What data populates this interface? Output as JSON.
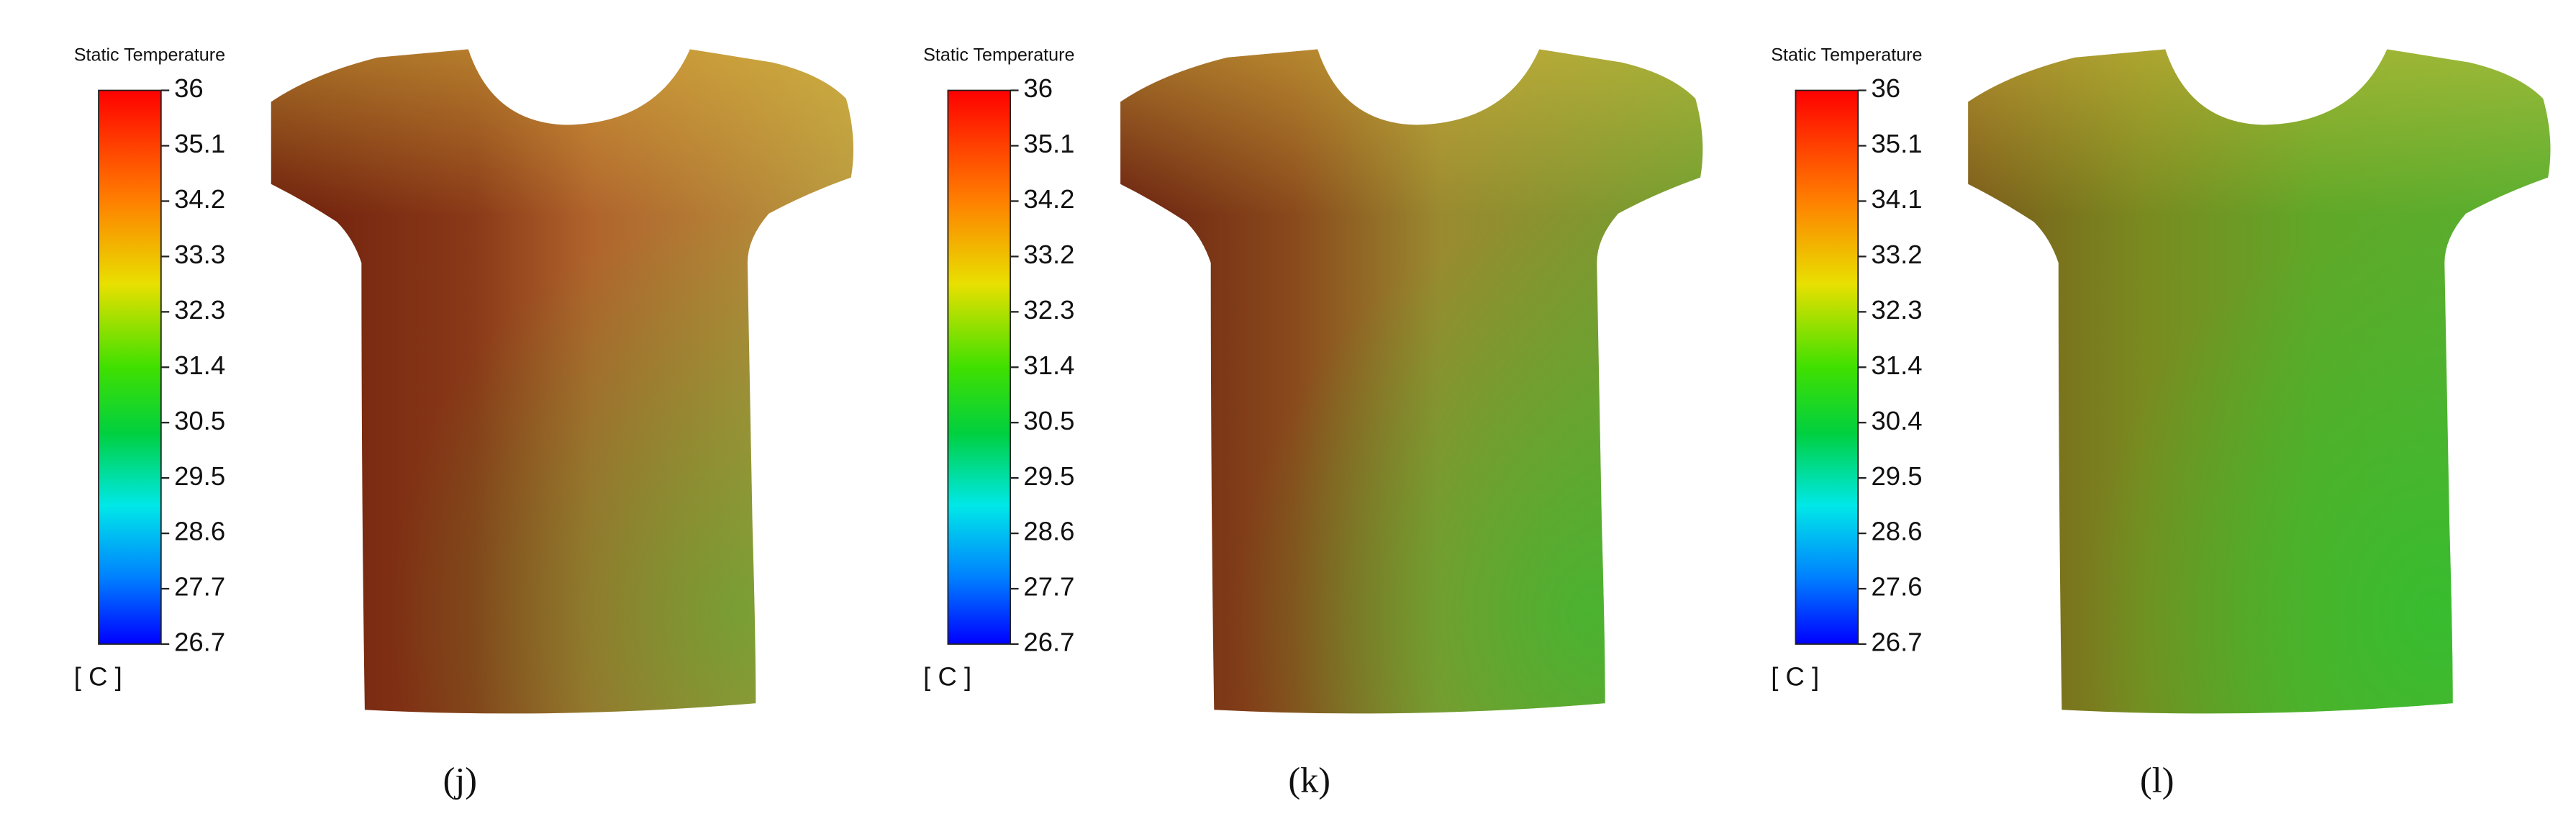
{
  "panels": [
    {
      "legend_title": "Static Temperature",
      "ticks": [
        "36",
        "35.1",
        "34.2",
        "33.3",
        "32.3",
        "31.4",
        "30.5",
        "29.5",
        "28.6",
        "27.7",
        "26.7"
      ],
      "unit": "[ C ]",
      "label": "(j)"
    },
    {
      "legend_title": "Static Temperature",
      "ticks": [
        "36",
        "35.1",
        "34.2",
        "33.2",
        "32.3",
        "31.4",
        "30.5",
        "29.5",
        "28.6",
        "27.7",
        "26.7"
      ],
      "unit": "[ C ]",
      "label": "(k)"
    },
    {
      "legend_title": "Static Temperature",
      "ticks": [
        "36",
        "35.1",
        "34.1",
        "33.2",
        "32.3",
        "31.4",
        "30.4",
        "29.5",
        "28.6",
        "27.6",
        "26.7"
      ],
      "unit": "[ C ]",
      "label": "(l)"
    }
  ]
}
